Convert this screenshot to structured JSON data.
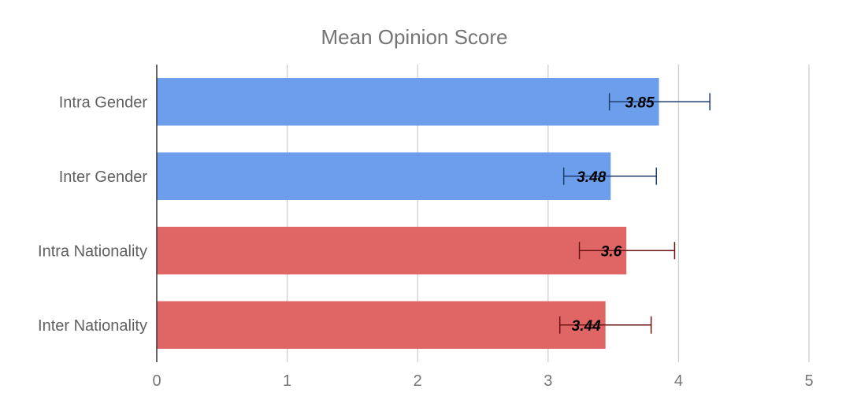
{
  "chart_data": {
    "type": "bar",
    "orientation": "horizontal",
    "title": "Mean Opinion Score",
    "xlabel": "",
    "ylabel": "",
    "xlim": [
      0,
      5
    ],
    "xticks": [
      0,
      1,
      2,
      3,
      4,
      5
    ],
    "grid": true,
    "legend": "none",
    "categories": [
      "Intra Gender",
      "Inter Gender",
      "Intra Nationality",
      "Inter Nationality"
    ],
    "values": [
      3.85,
      3.48,
      3.6,
      3.44
    ],
    "data_labels": [
      "3.85",
      "3.48",
      "3.6",
      "3.44"
    ],
    "error_low": [
      3.47,
      3.12,
      3.24,
      3.09
    ],
    "error_high": [
      4.24,
      3.83,
      3.97,
      3.79
    ],
    "bar_colors": [
      "#6d9eeb",
      "#6d9eeb",
      "#e06666",
      "#e06666"
    ],
    "error_colors": [
      "#1c3d6e",
      "#1c3d6e",
      "#6b1313",
      "#6b1313"
    ]
  }
}
